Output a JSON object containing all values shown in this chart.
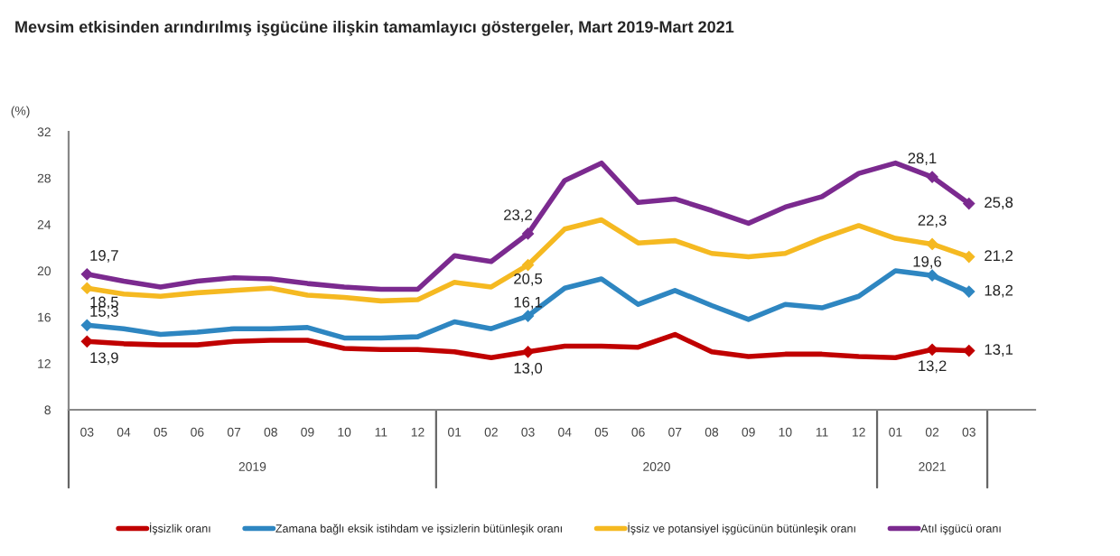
{
  "chart_data": {
    "type": "line",
    "title": "Mevsim etkisinden arındırılmış işgücüne ilişkin tamamlayıcı göstergeler, Mart 2019-Mart 2021",
    "ylabel": "(%)",
    "categories": [
      "03",
      "04",
      "05",
      "06",
      "07",
      "08",
      "09",
      "10",
      "11",
      "12",
      "01",
      "02",
      "03",
      "04",
      "05",
      "06",
      "07",
      "08",
      "09",
      "10",
      "11",
      "12",
      "01",
      "02",
      "03"
    ],
    "annotations": [
      "2019",
      "2020",
      "2021"
    ],
    "series": [
      {
        "name": "İşsizlik oranı",
        "color": "#c00000",
        "values": [
          13.9,
          13.7,
          13.6,
          13.6,
          13.9,
          14.0,
          14.0,
          13.3,
          13.2,
          13.2,
          13.0,
          12.5,
          13.0,
          13.5,
          13.5,
          13.4,
          14.5,
          13.0,
          12.6,
          12.8,
          12.8,
          12.6,
          12.5,
          13.2,
          13.1
        ],
        "value_labels": [
          "13,9",
          null,
          null,
          null,
          null,
          null,
          null,
          null,
          null,
          null,
          null,
          null,
          "13,0",
          null,
          null,
          null,
          null,
          null,
          null,
          null,
          null,
          null,
          null,
          "13,2",
          "13,1"
        ]
      },
      {
        "name": "Zamana bağlı eksik istihdam ve işsizlerin bütünleşik oranı",
        "color": "#2e86c1",
        "values": [
          15.3,
          15.0,
          14.5,
          14.7,
          15.0,
          15.0,
          15.1,
          14.2,
          14.2,
          14.3,
          15.6,
          15.0,
          16.1,
          18.5,
          19.3,
          17.1,
          18.3,
          17.0,
          15.8,
          17.1,
          16.8,
          17.8,
          20.0,
          19.6,
          18.2
        ],
        "value_labels": [
          "15,3",
          null,
          null,
          null,
          null,
          null,
          null,
          null,
          null,
          null,
          null,
          null,
          "16,1",
          null,
          null,
          null,
          null,
          null,
          null,
          null,
          null,
          null,
          null,
          "19,6",
          "18,2"
        ]
      },
      {
        "name": "İşsiz ve potansiyel işgücünün bütünleşik oranı",
        "color": "#f5b921",
        "values": [
          18.5,
          18.0,
          17.8,
          18.1,
          18.3,
          18.5,
          17.9,
          17.7,
          17.4,
          17.5,
          19.0,
          18.6,
          20.5,
          23.6,
          24.4,
          22.4,
          22.6,
          21.5,
          21.2,
          21.5,
          22.8,
          23.9,
          22.8,
          22.3,
          21.2
        ],
        "value_labels": [
          "18,5",
          null,
          null,
          null,
          null,
          null,
          null,
          null,
          null,
          null,
          null,
          null,
          "20,5",
          null,
          null,
          null,
          null,
          null,
          null,
          null,
          null,
          null,
          null,
          "22,3",
          "21,2"
        ]
      },
      {
        "name": "Atıl işgücü oranı",
        "color": "#7b2a8f",
        "values": [
          19.7,
          19.1,
          18.6,
          19.1,
          19.4,
          19.3,
          18.9,
          18.6,
          18.4,
          18.4,
          21.3,
          20.8,
          23.2,
          27.8,
          29.3,
          25.9,
          26.2,
          25.2,
          24.1,
          25.5,
          26.4,
          28.4,
          29.3,
          28.1,
          25.8
        ],
        "value_labels": [
          "19,7",
          null,
          null,
          null,
          null,
          null,
          null,
          null,
          null,
          null,
          null,
          null,
          "23,2",
          null,
          null,
          null,
          null,
          null,
          null,
          null,
          null,
          null,
          null,
          "28,1",
          "25,8"
        ]
      }
    ],
    "ylim": [
      8,
      32
    ],
    "yticks": [
      8,
      12,
      16,
      20,
      24,
      28,
      32
    ],
    "grid": false,
    "legend": "bottom",
    "line_style": "solid"
  }
}
